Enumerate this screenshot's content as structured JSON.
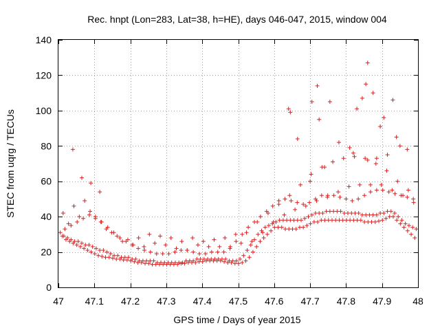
{
  "chart_data": {
    "type": "scatter",
    "title": "Rec. hnpt (Lon=283, Lat=38, h=HE), days 046-047, 2015, window 004",
    "xlabel": "GPS time / Days of year 2015",
    "ylabel": "STEC from uqrg / TECUs",
    "xlim": [
      47.0,
      48.0
    ],
    "ylim": [
      0,
      140
    ],
    "x_ticks": [
      47.0,
      47.1,
      47.2,
      47.3,
      47.4,
      47.5,
      47.6,
      47.7,
      47.8,
      47.9,
      48.0
    ],
    "x_tick_labels": [
      "47",
      "47.1",
      "47.2",
      "47.3",
      "47.4",
      "47.5",
      "47.6",
      "47.7",
      "47.8",
      "47.9",
      "48"
    ],
    "y_ticks": [
      0,
      20,
      40,
      60,
      80,
      100,
      120,
      140
    ],
    "y_tick_labels": [
      "0",
      "20",
      "40",
      "60",
      "80",
      "100",
      "120",
      "140"
    ],
    "grid": true,
    "marker": "+",
    "marker_color": "#d62020",
    "series": [
      {
        "name": "STEC",
        "x": [
          47.011,
          47.021,
          47.031,
          47.041,
          47.051,
          47.061,
          47.071,
          47.081,
          47.091,
          47.101,
          47.111,
          47.121,
          47.131,
          47.141,
          47.151,
          47.161,
          47.171,
          47.181,
          47.191,
          47.201,
          47.211,
          47.221,
          47.231,
          47.241,
          47.251,
          47.261,
          47.271,
          47.281,
          47.291,
          47.301,
          47.311,
          47.321,
          47.331,
          47.341,
          47.351,
          47.361,
          47.371,
          47.381,
          47.391,
          47.401,
          47.411,
          47.421,
          47.431,
          47.441,
          47.451,
          47.461,
          47.471,
          47.481,
          47.491,
          47.501,
          47.511,
          47.521,
          47.531,
          47.541,
          47.551,
          47.561,
          47.571,
          47.581,
          47.591,
          47.601,
          47.611,
          47.621,
          47.631,
          47.641,
          47.651,
          47.661,
          47.671,
          47.681,
          47.691,
          47.701,
          47.711,
          47.721,
          47.731,
          47.741,
          47.751,
          47.761,
          47.771,
          47.781,
          47.791,
          47.801,
          47.811,
          47.821,
          47.831,
          47.841,
          47.851,
          47.861,
          47.871,
          47.881,
          47.891,
          47.901,
          47.911,
          47.921,
          47.931,
          47.941,
          47.951,
          47.961,
          47.971,
          47.981,
          47.991,
          47.005,
          47.015,
          47.025,
          47.035,
          47.045,
          47.055,
          47.065,
          47.075,
          47.085,
          47.095,
          47.105,
          47.115,
          47.125,
          47.135,
          47.145,
          47.155,
          47.165,
          47.175,
          47.185,
          47.195,
          47.205,
          47.215,
          47.225,
          47.235,
          47.245,
          47.255,
          47.265,
          47.275,
          47.285,
          47.295,
          47.305,
          47.315,
          47.325,
          47.335,
          47.345,
          47.355,
          47.365,
          47.375,
          47.385,
          47.395,
          47.405,
          47.415,
          47.425,
          47.435,
          47.445,
          47.455,
          47.465,
          47.475,
          47.485,
          47.495,
          47.505,
          47.515,
          47.525,
          47.535,
          47.545,
          47.555,
          47.565,
          47.575,
          47.585,
          47.595,
          47.605,
          47.615,
          47.625,
          47.635,
          47.645,
          47.655,
          47.665,
          47.675,
          47.685,
          47.695,
          47.705,
          47.715,
          47.725,
          47.735,
          47.745,
          47.755,
          47.765,
          47.775,
          47.785,
          47.795,
          47.805,
          47.815,
          47.825,
          47.835,
          47.845,
          47.855,
          47.865,
          47.875,
          47.885,
          47.895,
          47.905,
          47.915,
          47.925,
          47.935,
          47.945,
          47.955,
          47.965,
          47.975,
          47.985,
          47.995,
          47.018,
          47.035,
          47.052,
          47.069,
          47.086,
          47.103,
          47.12,
          47.137,
          47.154,
          47.171,
          47.188,
          47.205,
          47.222,
          47.239,
          47.256,
          47.273,
          47.29,
          47.307,
          47.324,
          47.341,
          47.358,
          47.375,
          47.392,
          47.409,
          47.426,
          47.443,
          47.46,
          47.477,
          47.494,
          47.511,
          47.528,
          47.545,
          47.562,
          47.579,
          47.596,
          47.613,
          47.63,
          47.647,
          47.664,
          47.681,
          47.698,
          47.715,
          47.732,
          47.749,
          47.766,
          47.783,
          47.8,
          47.817,
          47.834,
          47.851,
          47.868,
          47.885,
          47.902,
          47.919,
          47.936,
          47.953,
          47.97,
          47.987,
          47.028,
          47.058,
          47.088,
          47.118,
          47.148,
          47.178,
          47.208,
          47.238,
          47.268,
          47.298,
          47.328,
          47.358,
          47.388,
          47.418,
          47.448,
          47.478,
          47.508,
          47.538,
          47.568,
          47.598,
          47.628,
          47.658,
          47.688,
          47.718,
          47.748,
          47.778,
          47.808,
          47.838,
          47.868,
          47.898,
          47.928,
          47.958,
          47.988,
          47.013,
          47.043,
          47.073,
          47.103,
          47.133,
          47.163,
          47.193,
          47.223,
          47.253,
          47.283,
          47.313,
          47.343,
          47.373,
          47.403,
          47.433,
          47.463,
          47.493,
          47.523,
          47.553,
          47.583,
          47.613,
          47.643,
          47.673,
          47.703,
          47.733,
          47.763,
          47.793,
          47.823,
          47.853,
          47.883,
          47.913,
          47.943,
          47.973,
          47.04,
          47.065,
          47.09,
          47.115,
          47.64,
          47.645,
          47.665,
          47.705,
          47.72,
          47.725,
          47.755,
          47.78,
          47.83,
          47.845,
          47.855,
          47.86,
          47.875,
          47.895,
          47.93,
          47.94,
          47.7,
          47.74,
          47.81,
          47.82,
          47.86,
          47.885,
          47.905,
          47.915,
          47.95,
          47.97
        ],
        "y": [
          29,
          27,
          26,
          25,
          24,
          23,
          22,
          21,
          20,
          19,
          18,
          17.5,
          17,
          17,
          16.5,
          16,
          16,
          15.5,
          15.5,
          15,
          14.5,
          14,
          14,
          13.5,
          13.5,
          13,
          13,
          13,
          13,
          13,
          13,
          13,
          13,
          13.5,
          13.5,
          14,
          14,
          14,
          14.5,
          14.5,
          15,
          15,
          15,
          15,
          15,
          14.5,
          14,
          14,
          13.5,
          13.5,
          14,
          15,
          17,
          20,
          23,
          26,
          28,
          30,
          32,
          34,
          34,
          34,
          33,
          33,
          33,
          33,
          34,
          34,
          35,
          36,
          37,
          37,
          38,
          38,
          38,
          38,
          38,
          38,
          38,
          38,
          38,
          38,
          38,
          38,
          37,
          37,
          37,
          37,
          37.5,
          38,
          39,
          40,
          40,
          38,
          36,
          34,
          32,
          30,
          28,
          31,
          29,
          28,
          27,
          26,
          26,
          25,
          24,
          24,
          23,
          22,
          21,
          21,
          20,
          19,
          18,
          18,
          17,
          17,
          17,
          16,
          16,
          15,
          15,
          15,
          15,
          15,
          14,
          14,
          14,
          14,
          14,
          14,
          14,
          14,
          15,
          15,
          15,
          16,
          16,
          16,
          16,
          16,
          16,
          16,
          16,
          16,
          15,
          15,
          15,
          16,
          18,
          21,
          24,
          27,
          30,
          32,
          34,
          35,
          36,
          37,
          38,
          38,
          38,
          38,
          38,
          38,
          38,
          39,
          40,
          41,
          42,
          42,
          42,
          43,
          43,
          43,
          43,
          43,
          42,
          42,
          42,
          42,
          42,
          41,
          41,
          41,
          41,
          41,
          42,
          42,
          43,
          43,
          42,
          40,
          38,
          36,
          35,
          34,
          33,
          33,
          35,
          37,
          39,
          41,
          40,
          37,
          34,
          31,
          28,
          26,
          24,
          22,
          21,
          20,
          19,
          19,
          19,
          20,
          21,
          21,
          20,
          19,
          19,
          20,
          20,
          20,
          22,
          26,
          30,
          34,
          37,
          40,
          43,
          46,
          49,
          50,
          49,
          48,
          47,
          48,
          50,
          52,
          52,
          52,
          51,
          50,
          49,
          50,
          52,
          54,
          55,
          55,
          54,
          53,
          52,
          51,
          50,
          36,
          40,
          43,
          37,
          31,
          26,
          24,
          23,
          25,
          24,
          22,
          21,
          24,
          23,
          23,
          23,
          25,
          26,
          31,
          37,
          41,
          44,
          46,
          49,
          51,
          54,
          57,
          58,
          58,
          58,
          55,
          52,
          48,
          42,
          46,
          49,
          39,
          33,
          29,
          27,
          28,
          30,
          29,
          28,
          26,
          28,
          26,
          27,
          28,
          30,
          31,
          37,
          42,
          47,
          52,
          58,
          64,
          68,
          71,
          73,
          74,
          73,
          70,
          66,
          60,
          55,
          78,
          62,
          59,
          54,
          101,
          99,
          84,
          105,
          114,
          95,
          105,
          82,
          101,
          107,
          115,
          127,
          110,
          91,
          106,
          85,
          60,
          68,
          79,
          76,
          72,
          73,
          96,
          75,
          80,
          78
        ]
      }
    ]
  }
}
